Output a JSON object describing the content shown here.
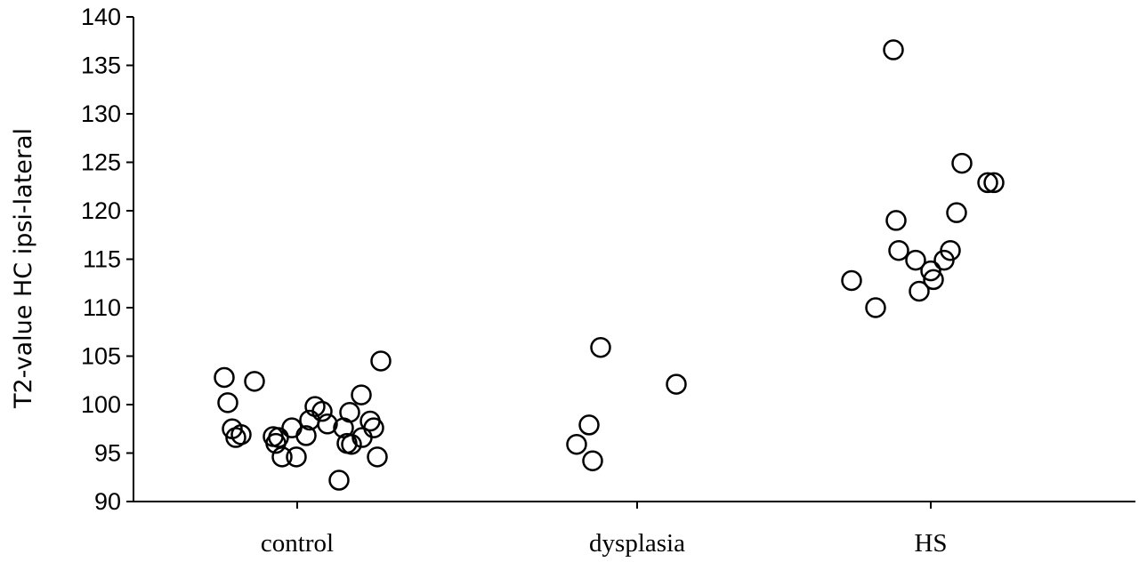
{
  "chart_data": {
    "type": "scatter",
    "title": "",
    "xlabel": "",
    "ylabel": "T2-value HC ipsi-lateral",
    "categories": [
      "control",
      "dysplasia",
      "HS"
    ],
    "ylim": [
      90,
      140
    ],
    "yticks": [
      90,
      95,
      100,
      105,
      110,
      115,
      120,
      125,
      130,
      135,
      140
    ],
    "grid": false,
    "legend": "none",
    "marker": "open-circle",
    "marker_color": "#000000",
    "points": [
      {
        "x": "control",
        "y": 102.8
      },
      {
        "x": "control",
        "y": 100.2
      },
      {
        "x": "control",
        "y": 97.5
      },
      {
        "x": "control",
        "y": 96.6
      },
      {
        "x": "control",
        "y": 96.9
      },
      {
        "x": "control",
        "y": 102.4
      },
      {
        "x": "control",
        "y": 96.7
      },
      {
        "x": "control",
        "y": 96.0
      },
      {
        "x": "control",
        "y": 96.6
      },
      {
        "x": "control",
        "y": 94.6
      },
      {
        "x": "control",
        "y": 94.6
      },
      {
        "x": "control",
        "y": 97.6
      },
      {
        "x": "control",
        "y": 96.8
      },
      {
        "x": "control",
        "y": 98.4
      },
      {
        "x": "control",
        "y": 99.8
      },
      {
        "x": "control",
        "y": 99.3
      },
      {
        "x": "control",
        "y": 98.0
      },
      {
        "x": "control",
        "y": 92.2
      },
      {
        "x": "control",
        "y": 97.6
      },
      {
        "x": "control",
        "y": 96.0
      },
      {
        "x": "control",
        "y": 99.2
      },
      {
        "x": "control",
        "y": 95.9
      },
      {
        "x": "control",
        "y": 96.6
      },
      {
        "x": "control",
        "y": 101.0
      },
      {
        "x": "control",
        "y": 98.3
      },
      {
        "x": "control",
        "y": 97.6
      },
      {
        "x": "control",
        "y": 94.6
      },
      {
        "x": "control",
        "y": 104.5
      },
      {
        "x": "dysplasia",
        "y": 95.9
      },
      {
        "x": "dysplasia",
        "y": 97.9
      },
      {
        "x": "dysplasia",
        "y": 94.2
      },
      {
        "x": "dysplasia",
        "y": 105.9
      },
      {
        "x": "dysplasia",
        "y": 102.1
      },
      {
        "x": "HS",
        "y": 112.8
      },
      {
        "x": "HS",
        "y": 110.0
      },
      {
        "x": "HS",
        "y": 136.6
      },
      {
        "x": "HS",
        "y": 119.0
      },
      {
        "x": "HS",
        "y": 115.9
      },
      {
        "x": "HS",
        "y": 114.9
      },
      {
        "x": "HS",
        "y": 111.7
      },
      {
        "x": "HS",
        "y": 113.8
      },
      {
        "x": "HS",
        "y": 112.9
      },
      {
        "x": "HS",
        "y": 114.9
      },
      {
        "x": "HS",
        "y": 115.9
      },
      {
        "x": "HS",
        "y": 119.8
      },
      {
        "x": "HS",
        "y": 124.9
      },
      {
        "x": "HS",
        "y": 122.9
      },
      {
        "x": "HS",
        "y": 122.9
      }
    ]
  }
}
